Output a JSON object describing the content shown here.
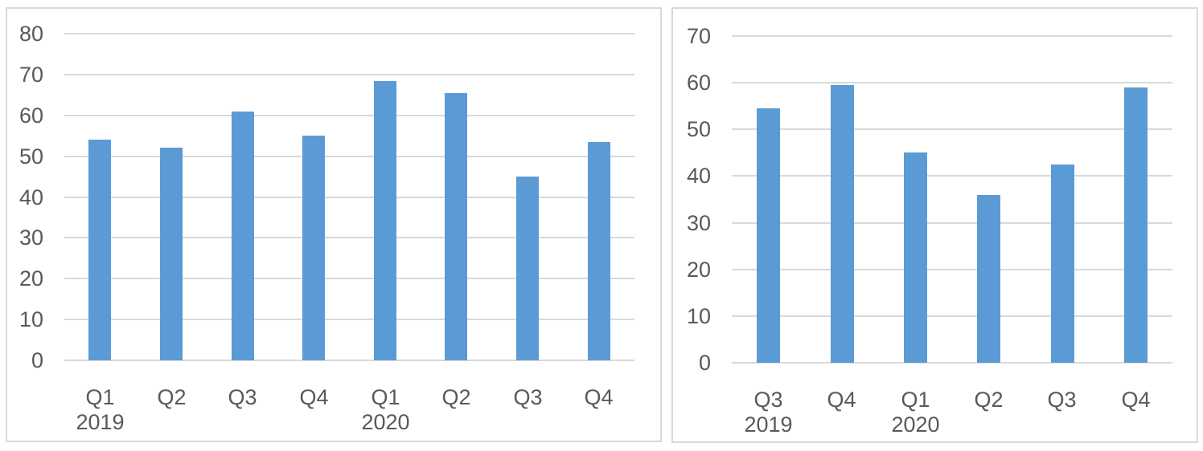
{
  "page": {
    "background_color": "#ffffff"
  },
  "chart_data": [
    {
      "type": "bar",
      "title": "",
      "xlabel": "",
      "ylabel": "",
      "categories": [
        "Q1",
        "Q2",
        "Q3",
        "Q4",
        "Q1",
        "Q2",
        "Q3",
        "Q4"
      ],
      "category_years": [
        {
          "category_index": 0,
          "label": "2019"
        },
        {
          "category_index": 4,
          "label": "2020"
        }
      ],
      "values": [
        54,
        52,
        61,
        55,
        68.5,
        65.5,
        45,
        53.5
      ],
      "ylim": [
        0,
        80
      ],
      "yticks": [
        0,
        10,
        20,
        30,
        40,
        50,
        60,
        70,
        80
      ],
      "grid": true,
      "legend": false,
      "bar_color": "#5B9BD5",
      "gridline_color": "#D9D9D9",
      "axis_text_color": "#595959",
      "panel_border_color": "#D9D9D9"
    },
    {
      "type": "bar",
      "title": "",
      "xlabel": "",
      "ylabel": "",
      "categories": [
        "Q3",
        "Q4",
        "Q1",
        "Q2",
        "Q3",
        "Q4"
      ],
      "category_years": [
        {
          "category_index": 0,
          "label": "2019"
        },
        {
          "category_index": 2,
          "label": "2020"
        }
      ],
      "values": [
        54.5,
        59.5,
        45,
        36,
        42.5,
        59
      ],
      "ylim": [
        0,
        70
      ],
      "yticks": [
        0,
        10,
        20,
        30,
        40,
        50,
        60,
        70
      ],
      "grid": true,
      "legend": false,
      "bar_color": "#5B9BD5",
      "gridline_color": "#D9D9D9",
      "axis_text_color": "#595959",
      "panel_border_color": "#D9D9D9"
    }
  ]
}
